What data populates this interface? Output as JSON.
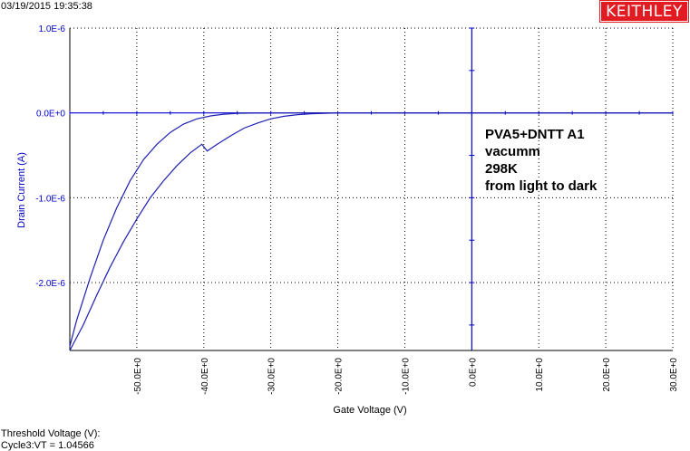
{
  "header": {
    "timestamp": "03/19/2015 19:35:38",
    "brand": "KEITHLEY"
  },
  "footer": {
    "threshold_label": "Threshold Voltage (V):",
    "threshold_value": "Cycle3:VT = 1.04566"
  },
  "colors": {
    "curve": "#1f1fb4",
    "axis": "#0000cc",
    "grid": "#000000",
    "brand_bg": "#e21a22"
  },
  "chart_data": {
    "type": "line",
    "xlabel": "Gate Voltage (V)",
    "ylabel": "Drain Current (A)",
    "xlim": [
      -60,
      30
    ],
    "ylim": [
      -2.8e-06,
      1e-06
    ],
    "grid": true,
    "x_ticks": [
      -50,
      -40,
      -30,
      -20,
      -10,
      0,
      10,
      20,
      30
    ],
    "x_tick_labels": [
      "-50.0E+0",
      "-40.0E+0",
      "-30.0E+0",
      "-20.0E+0",
      "-10.0E+0",
      "0.0E+0",
      "10.0E+0",
      "20.0E+0",
      "30.0E+0"
    ],
    "y_ticks": [
      1e-06,
      0,
      -1e-06,
      -2e-06
    ],
    "y_tick_labels": [
      "1.0E-6",
      "0.0E+0",
      "-1.0E-6",
      "-2.0E-6"
    ],
    "annotations": [
      "PVA5+DNTT A1",
      "vacumm",
      "298K",
      "from light to dark"
    ],
    "series": [
      {
        "x": [
          -60,
          -59,
          -57,
          -55,
          -53,
          -51,
          -49,
          -47,
          -45,
          -43,
          -41,
          -39,
          -37,
          -35,
          -33,
          -30,
          -27,
          -25,
          -20,
          -15,
          -10,
          -5,
          0,
          10,
          20,
          30
        ],
        "y": [
          -2.75e-06,
          -2.45e-06,
          -1.95e-06,
          -1.5e-06,
          -1.12e-06,
          -8e-07,
          -5.5e-07,
          -3.7e-07,
          -2.3e-07,
          -1.3e-07,
          -7e-08,
          -3.5e-08,
          -1.5e-08,
          -6e-09,
          -2e-09,
          -1e-09,
          0,
          0,
          0,
          0,
          0,
          0,
          0,
          0,
          0,
          0
        ]
      },
      {
        "x": [
          -60,
          -58,
          -56,
          -54,
          -52,
          -50,
          -48,
          -46,
          -44,
          -42,
          -40.3,
          -39.5,
          -38,
          -36,
          -34,
          -32,
          -30,
          -28,
          -26,
          -24,
          -22,
          -20,
          -15,
          -10,
          0,
          10,
          20,
          30
        ],
        "y": [
          -2.8e-06,
          -2.5e-06,
          -2.15e-06,
          -1.82e-06,
          -1.52e-06,
          -1.25e-06,
          -1e-06,
          -8e-07,
          -6.2e-07,
          -4.7e-07,
          -3.7e-07,
          -4.5e-07,
          -3.7e-07,
          -2.7e-07,
          -1.8e-07,
          -1.2e-07,
          -7e-08,
          -4e-08,
          -2e-08,
          -1e-08,
          -4e-09,
          0,
          0,
          0,
          0,
          0,
          0,
          0
        ]
      }
    ]
  }
}
